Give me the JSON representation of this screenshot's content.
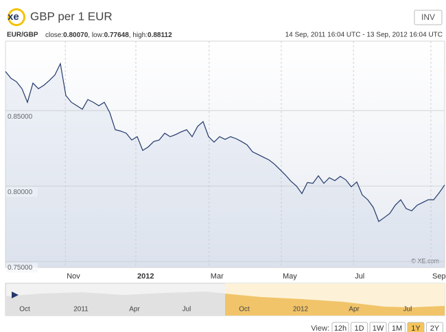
{
  "chart_data": {
    "type": "line",
    "title": "GBP per 1 EUR",
    "logo": "xe",
    "button": "INV",
    "pair": "EUR/GBP",
    "stats": [
      {
        "label": "close:",
        "value": "0.80070"
      },
      {
        "label": ", low:",
        "value": "0.77648"
      },
      {
        "label": ", high:",
        "value": "0.88112"
      }
    ],
    "date_range": "14 Sep, 2011 16:04 UTC - 13 Sep, 2012 16:04 UTC",
    "watermark": "© XE.com",
    "series": [
      {
        "name": "EUR/GBP",
        "color": "#22386a",
        "values": [
          0.8759,
          0.8714,
          0.8691,
          0.8645,
          0.8555,
          0.8682,
          0.8645,
          0.8668,
          0.87,
          0.8736,
          0.8811,
          0.86,
          0.8555,
          0.8532,
          0.8509,
          0.8573,
          0.8555,
          0.8532,
          0.8555,
          0.8486,
          0.8373,
          0.8364,
          0.835,
          0.8305,
          0.8327,
          0.8236,
          0.8259,
          0.8295,
          0.8305,
          0.835,
          0.8327,
          0.8341,
          0.8359,
          0.8373,
          0.8327,
          0.8395,
          0.8427,
          0.8327,
          0.8291,
          0.8327,
          0.8309,
          0.8327,
          0.8314,
          0.8295,
          0.8273,
          0.8227,
          0.8209,
          0.8191,
          0.8173,
          0.8145,
          0.8109,
          0.8073,
          0.8032,
          0.8,
          0.795,
          0.8023,
          0.8018,
          0.8068,
          0.8018,
          0.8055,
          0.8036,
          0.8064,
          0.8041,
          0.7995,
          0.8027,
          0.7941,
          0.7909,
          0.7859,
          0.7765,
          0.7791,
          0.7818,
          0.7873,
          0.7909,
          0.785,
          0.7836,
          0.7873,
          0.7891,
          0.7909,
          0.7909,
          0.7955,
          0.8007
        ]
      }
    ],
    "xlim": [
      0,
      80
    ],
    "xticks": [
      {
        "value": 10.9,
        "label": "Nov"
      },
      {
        "value": 23.75,
        "label": "2012",
        "bold": true
      },
      {
        "value": 37.1,
        "label": "Mar"
      },
      {
        "value": 50.25,
        "label": "May"
      },
      {
        "value": 63.4,
        "label": "Jul"
      },
      {
        "value": 77.5,
        "label": "Sep"
      }
    ],
    "ylim": [
      0.746,
      0.896
    ],
    "yticks": [
      {
        "value": 0.75,
        "label": "0.75000"
      },
      {
        "value": 0.8,
        "label": "0.80000"
      },
      {
        "value": 0.85,
        "label": "0.85000"
      }
    ],
    "grid": true,
    "navigator_labels": [
      "Oct",
      "2011",
      "Apr",
      "Jul",
      "Oct",
      "2012",
      "Apr",
      "Jul"
    ],
    "view_label": "View:",
    "ranges": [
      "12h",
      "1D",
      "1W",
      "1M",
      "1Y",
      "2Y"
    ],
    "selected_range": "1Y"
  }
}
